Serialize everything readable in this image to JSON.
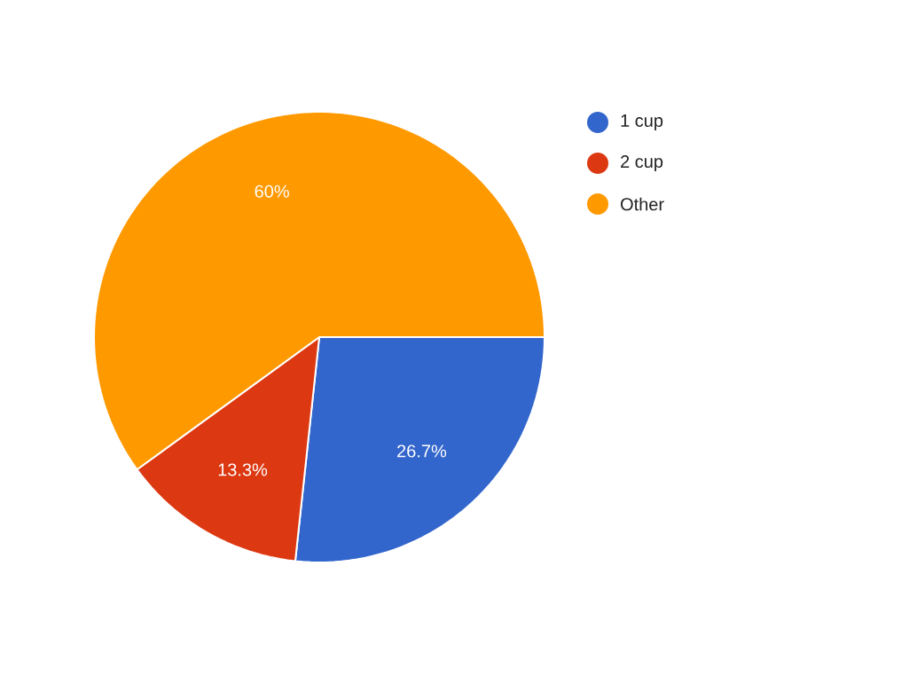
{
  "chart_data": {
    "type": "pie",
    "categories": [
      "1 cup",
      "2 cup",
      "Other"
    ],
    "values": [
      26.7,
      13.3,
      60
    ],
    "colors": [
      "#3366cc",
      "#dc3912",
      "#ff9900"
    ],
    "value_labels": [
      "26.7%",
      "13.3%",
      "60%"
    ],
    "legend": "top right"
  }
}
